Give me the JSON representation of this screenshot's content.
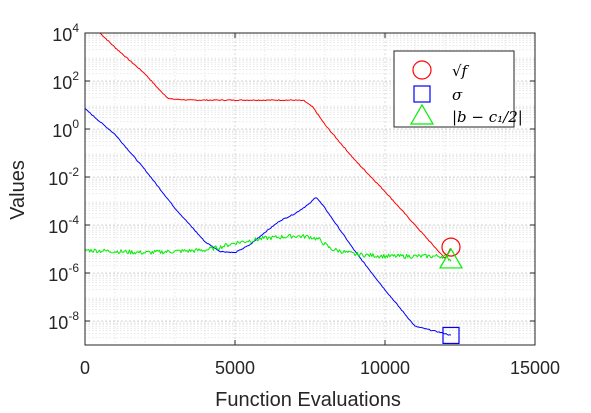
{
  "chart_data": {
    "type": "line",
    "xlabel": "Function Evaluations",
    "ylabel": "Values",
    "xlim": [
      0,
      15000
    ],
    "ylim": [
      1e-09,
      10000
    ],
    "yscale": "log",
    "grid": true,
    "minor_grid": true,
    "legend_position": "top-right",
    "x_ticks": [
      0,
      5000,
      10000,
      15000
    ],
    "x_tick_labels": [
      "0",
      "5000",
      "10000",
      "15000"
    ],
    "y_ticks": [
      1e-08,
      1e-06,
      0.0001,
      0.01,
      1,
      100,
      10000
    ],
    "y_tick_labels": [
      {
        "base": "10",
        "exp": "-8"
      },
      {
        "base": "10",
        "exp": "-6"
      },
      {
        "base": "10",
        "exp": "-4"
      },
      {
        "base": "10",
        "exp": "-2"
      },
      {
        "base": "10",
        "exp": "0"
      },
      {
        "base": "10",
        "exp": "2"
      },
      {
        "base": "10",
        "exp": "4"
      }
    ],
    "series": [
      {
        "name": "√f",
        "color": "#ff0000",
        "marker": "circle",
        "noise_decades": 0.02,
        "x": [
          500,
          1000,
          1500,
          2000,
          2500,
          2800,
          3500,
          5000,
          6000,
          7000,
          7300,
          7600,
          8000,
          9000,
          10000,
          11000,
          11500,
          12000,
          12200
        ],
        "y": [
          10000,
          2500,
          700,
          200,
          40,
          18,
          16,
          16,
          16,
          16,
          15,
          8,
          1.5,
          0.05,
          0.0025,
          0.0001,
          2e-05,
          4e-06,
          1.2e-05
        ]
      },
      {
        "name": "σ",
        "color": "#0000ff",
        "marker": "square",
        "noise_decades": 0.02,
        "x": [
          0,
          500,
          1000,
          2000,
          3000,
          4000,
          4500,
          5000,
          5500,
          6000,
          6500,
          7000,
          7500,
          7700,
          8000,
          9000,
          10000,
          11000,
          12000,
          12200
        ],
        "y": [
          7,
          2,
          0.6,
          0.02,
          0.0005,
          2e-05,
          8e-06,
          7e-06,
          1.5e-05,
          5e-05,
          0.00015,
          0.0003,
          0.0008,
          0.0015,
          0.0005,
          8e-06,
          2e-07,
          6e-09,
          3e-09,
          2.5e-09
        ]
      },
      {
        "name": "|b − c₁/2|",
        "color": "#00ee00",
        "marker": "triangle",
        "noise_decades": 0.09,
        "x": [
          0,
          1000,
          2000,
          3000,
          4000,
          4500,
          5000,
          6000,
          7000,
          7500,
          7800,
          8200,
          9000,
          10000,
          11000,
          12000,
          12200
        ],
        "y": [
          9e-06,
          8e-06,
          7e-06,
          8e-06,
          9e-06,
          1.2e-05,
          1.8e-05,
          2.8e-05,
          3.5e-05,
          3.2e-05,
          2.5e-05,
          1e-05,
          6e-06,
          5e-06,
          5e-06,
          5e-06,
          3.5e-06
        ]
      }
    ],
    "legend": [
      {
        "symbol": "circle",
        "color": "#ff0000",
        "label": "√f"
      },
      {
        "symbol": "square",
        "color": "#0000ff",
        "label": "σ"
      },
      {
        "symbol": "triangle",
        "color": "#00ee00",
        "label": "|b − c₁/2|"
      }
    ]
  }
}
